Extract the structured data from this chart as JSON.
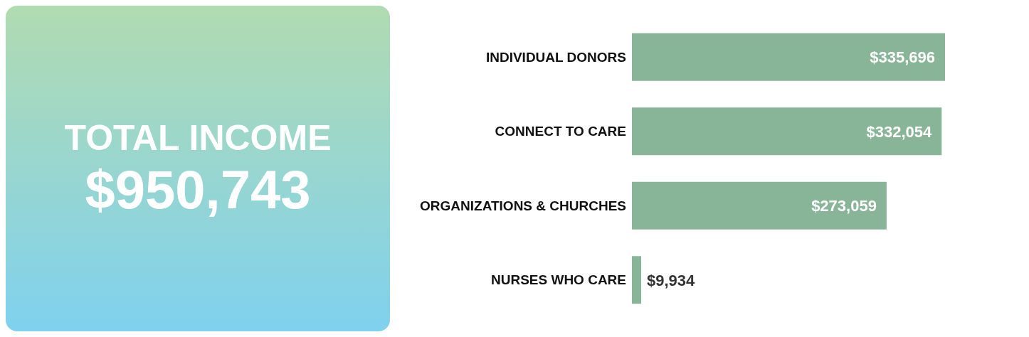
{
  "chart_data": {
    "type": "bar",
    "orientation": "horizontal",
    "title": "TOTAL INCOME",
    "subtitle": "$950,743",
    "categories": [
      "INDIVIDUAL DONORS",
      "CONNECT TO CARE",
      "ORGANIZATIONS & CHURCHES",
      "NURSES WHO CARE"
    ],
    "values": [
      335696,
      332054,
      273059,
      9934
    ],
    "value_labels": [
      "$335,696",
      "$332,054",
      "$273,059",
      "$9,934"
    ],
    "color": "#88b598"
  }
}
